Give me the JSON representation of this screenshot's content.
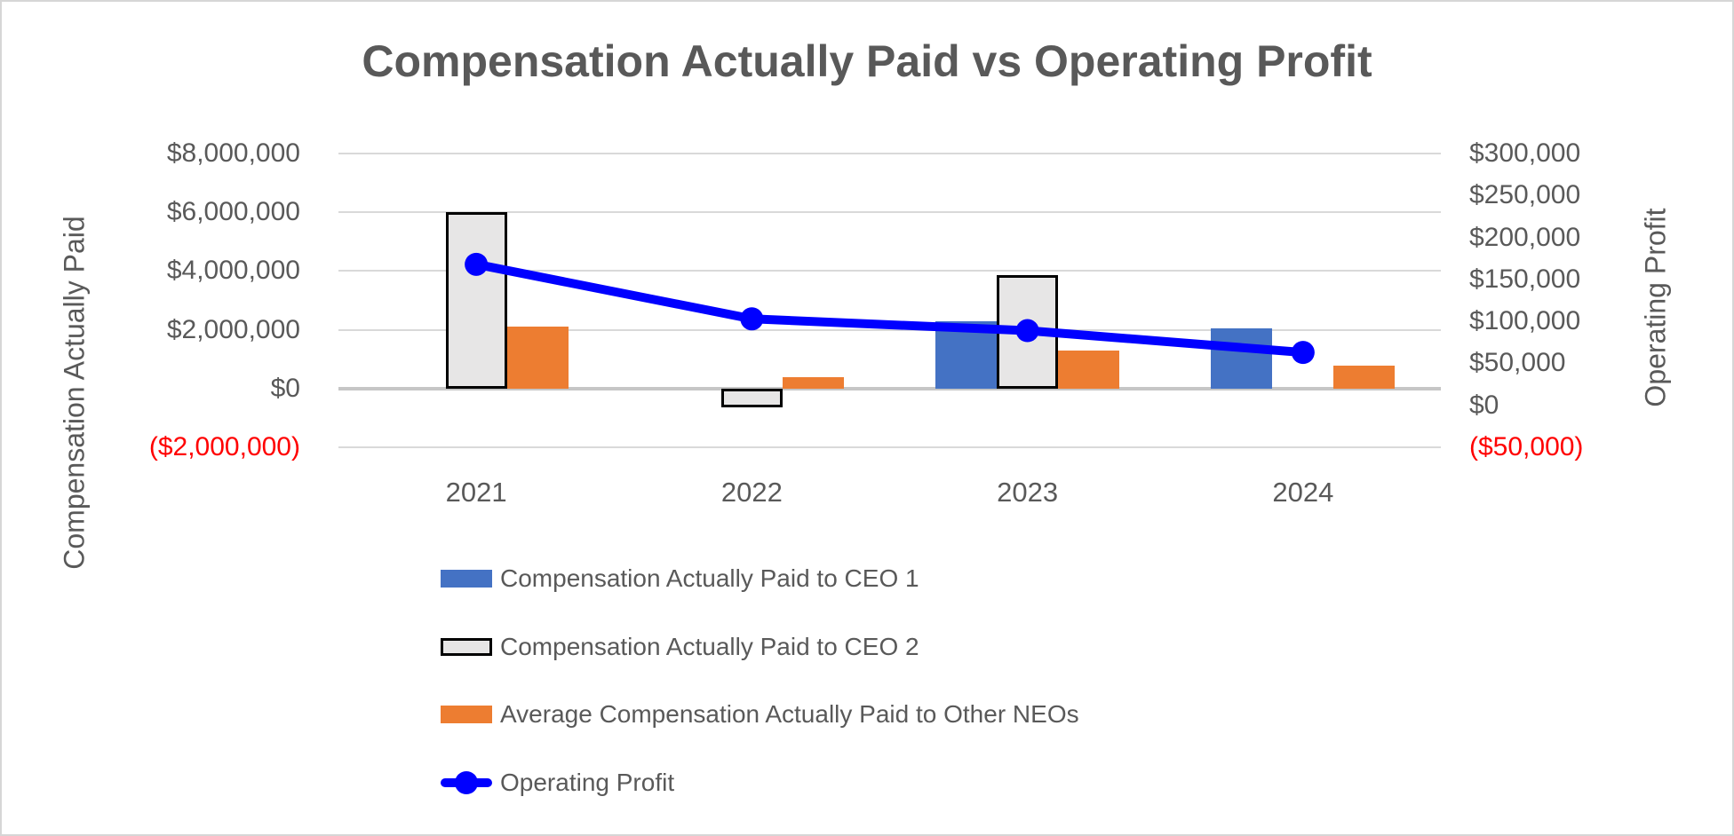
{
  "chart_data": {
    "type": "bar",
    "subtype": "bar-line-combo-dual-axis",
    "title": "Compensation Actually Paid vs Operating Profit",
    "categories": [
      "2021",
      "2022",
      "2023",
      "2024"
    ],
    "series": [
      {
        "key": "ceo1",
        "name": "Compensation Actually Paid to CEO 1",
        "type": "bar",
        "axis": "left",
        "color": "#4472C4",
        "values": [
          null,
          null,
          2300000,
          2050000
        ]
      },
      {
        "key": "ceo2",
        "name": "Compensation Actually Paid to CEO 2",
        "type": "bar",
        "axis": "left",
        "color": "#E7E6E6",
        "border_color": "#000000",
        "values": [
          6000000,
          -650000,
          3850000,
          null
        ]
      },
      {
        "key": "neos",
        "name": "Average Compensation Actually Paid to Other NEOs",
        "type": "bar",
        "axis": "left",
        "color": "#ED7D31",
        "values": [
          2100000,
          380000,
          1300000,
          780000
        ]
      },
      {
        "key": "profit",
        "name": "Operating Profit",
        "type": "line",
        "axis": "right",
        "color": "#0000FF",
        "values": [
          168000,
          103000,
          89000,
          63000
        ]
      }
    ],
    "axis_left": {
      "title": "Compensation Actually Paid",
      "min": -2000000,
      "max": 8000000,
      "tick_step": 2000000,
      "tick_labels": [
        "$8,000,000",
        "$6,000,000",
        "$4,000,000",
        "$2,000,000",
        "$0",
        "($2,000,000)"
      ]
    },
    "axis_right": {
      "title": "Operating Profit",
      "min": -50000,
      "max": 300000,
      "tick_step": 50000,
      "tick_labels": [
        "$300,000",
        "$250,000",
        "$200,000",
        "$150,000",
        "$100,000",
        "$50,000",
        "$0",
        "($50,000)"
      ]
    },
    "x_axis": {
      "labels": [
        "2021",
        "2022",
        "2023",
        "2024"
      ]
    },
    "legend": {
      "position": "bottom-left"
    },
    "style": {
      "gridlines": "horizontal",
      "gridline_color": "#D9D9D9",
      "zero_axis_color": "#C6C6C6",
      "text_color": "#595959",
      "negative_label_color": "#FF0000",
      "background": "#FFFFFF"
    }
  }
}
